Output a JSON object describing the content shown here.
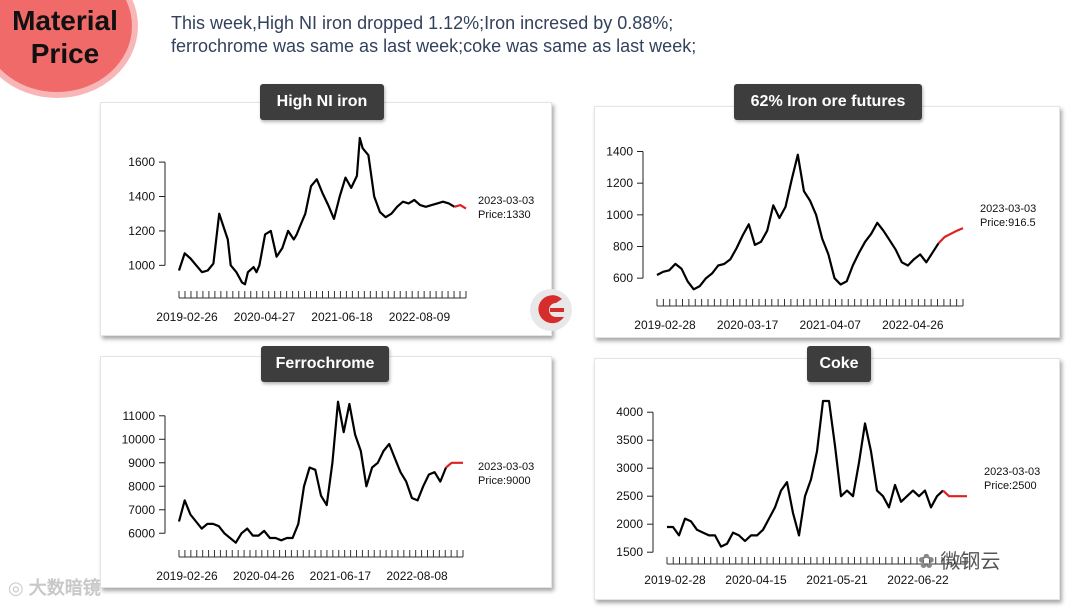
{
  "badge": {
    "line1": "Material",
    "line2": "Price"
  },
  "summary": {
    "line1": "This week,High NI iron  dropped  1.12%;Iron  incresed by 0.88%;",
    "line2": "ferrochrome  was same as last week;coke was same as last week;"
  },
  "watermarks": {
    "left": "大数暗镜",
    "right": "微钢云"
  },
  "colors": {
    "line": "#000000",
    "recent": "#e02020",
    "title_bg": "#3d3d3d"
  },
  "chart_data": [
    {
      "type": "line",
      "title": "High NI iron",
      "annotation": {
        "date": "2023-03-03",
        "price": "Price:1330"
      },
      "x_tick_labels": [
        "2019-02-26",
        "2020-04-27",
        "2021-06-18",
        "2022-08-09"
      ],
      "y_ticks": [
        1000,
        1200,
        1400,
        1600
      ],
      "ylim": [
        880,
        1740
      ],
      "x": [
        0,
        2,
        4,
        6,
        8,
        10,
        12,
        14,
        16,
        17,
        18,
        20,
        22,
        23,
        24,
        26,
        27,
        28,
        30,
        32,
        34,
        36,
        38,
        40,
        41,
        42,
        44,
        46,
        48,
        50,
        52,
        54,
        56,
        58,
        60,
        62,
        63,
        64,
        66,
        68,
        70,
        72,
        74,
        76,
        78,
        80,
        82,
        84,
        86,
        88,
        90,
        92,
        94,
        96,
        98,
        100
      ],
      "values": [
        970,
        1070,
        1040,
        1000,
        960,
        970,
        1010,
        1300,
        1200,
        1150,
        1000,
        960,
        900,
        890,
        960,
        990,
        960,
        1000,
        1180,
        1200,
        1050,
        1100,
        1200,
        1150,
        1180,
        1220,
        1300,
        1460,
        1500,
        1420,
        1350,
        1270,
        1400,
        1510,
        1450,
        1520,
        1740,
        1680,
        1640,
        1400,
        1310,
        1280,
        1300,
        1340,
        1370,
        1360,
        1380,
        1350,
        1340,
        1350,
        1360,
        1370,
        1360,
        1340,
        1350,
        1330
      ],
      "recent_from_index": 53
    },
    {
      "type": "line",
      "title": "62% Iron ore futures",
      "annotation": {
        "date": "2023-03-03",
        "price": "Price:916.5"
      },
      "x_tick_labels": [
        "2019-02-28",
        "2020-03-17",
        "2021-04-07",
        "2022-04-26"
      ],
      "y_ticks": [
        600,
        800,
        1000,
        1200,
        1400
      ],
      "ylim": [
        500,
        1460
      ],
      "x": [
        0,
        2,
        4,
        6,
        8,
        10,
        12,
        14,
        16,
        18,
        20,
        22,
        24,
        26,
        28,
        30,
        32,
        34,
        36,
        38,
        40,
        42,
        44,
        46,
        48,
        50,
        52,
        54,
        56,
        58,
        60,
        62,
        64,
        66,
        68,
        70,
        72,
        74,
        76,
        78,
        80,
        82,
        84,
        86,
        88,
        90,
        92,
        94,
        96,
        98,
        100
      ],
      "values": [
        620,
        640,
        650,
        690,
        660,
        580,
        530,
        550,
        600,
        630,
        680,
        690,
        720,
        790,
        870,
        940,
        810,
        830,
        900,
        1060,
        980,
        1050,
        1220,
        1380,
        1150,
        1090,
        1000,
        850,
        750,
        600,
        560,
        580,
        680,
        760,
        830,
        880,
        950,
        900,
        840,
        780,
        700,
        680,
        720,
        750,
        700,
        760,
        820,
        860,
        880,
        900,
        916
      ],
      "recent_from_index": 46
    },
    {
      "type": "line",
      "title": "Ferrochrome",
      "annotation": {
        "date": "2023-03-03",
        "price": "Price:9000"
      },
      "x_tick_labels": [
        "2019-02-26",
        "2020-04-26",
        "2021-06-17",
        "2022-08-08"
      ],
      "y_ticks": [
        6000,
        7000,
        8000,
        9000,
        10000,
        11000
      ],
      "ylim": [
        5500,
        11800
      ],
      "x": [
        0,
        2,
        4,
        6,
        8,
        10,
        12,
        14,
        16,
        18,
        20,
        22,
        24,
        26,
        28,
        30,
        32,
        34,
        36,
        38,
        40,
        42,
        44,
        46,
        48,
        50,
        52,
        54,
        56,
        58,
        60,
        62,
        64,
        66,
        68,
        70,
        72,
        74,
        76,
        78,
        80,
        82,
        84,
        86,
        88,
        90,
        92,
        94,
        96,
        98,
        100
      ],
      "values": [
        6500,
        7400,
        6800,
        6500,
        6200,
        6400,
        6400,
        6300,
        6000,
        5800,
        5600,
        6000,
        6200,
        5900,
        5900,
        6100,
        5800,
        5800,
        5700,
        5800,
        5800,
        6400,
        8000,
        8800,
        8700,
        7600,
        7200,
        9000,
        11600,
        10300,
        11500,
        10200,
        9500,
        8000,
        8800,
        9000,
        9500,
        9800,
        9200,
        8600,
        8200,
        7500,
        7400,
        8000,
        8500,
        8600,
        8200,
        8800,
        9000,
        9000,
        9000
      ],
      "recent_from_index": 47
    },
    {
      "type": "line",
      "title": "Coke",
      "annotation": {
        "date": "2023-03-03",
        "price": "Price:2500"
      },
      "x_tick_labels": [
        "2019-02-28",
        "2020-04-15",
        "2021-05-21",
        "2022-06-22"
      ],
      "y_ticks": [
        1500,
        2000,
        2500,
        3000,
        3500,
        4000
      ],
      "ylim": [
        1450,
        4200
      ],
      "x": [
        0,
        2,
        4,
        6,
        8,
        10,
        12,
        14,
        16,
        18,
        20,
        22,
        24,
        26,
        28,
        30,
        32,
        34,
        36,
        38,
        40,
        42,
        44,
        46,
        48,
        50,
        52,
        54,
        56,
        58,
        60,
        62,
        64,
        66,
        68,
        70,
        72,
        74,
        76,
        78,
        80,
        82,
        84,
        86,
        88,
        90,
        92,
        94,
        96,
        98,
        100
      ],
      "values": [
        1950,
        1950,
        1800,
        2100,
        2050,
        1900,
        1850,
        1800,
        1800,
        1600,
        1650,
        1850,
        1800,
        1700,
        1800,
        1800,
        1900,
        2100,
        2300,
        2600,
        2750,
        2200,
        1800,
        2500,
        2800,
        3300,
        4200,
        4200,
        3400,
        2500,
        2600,
        2500,
        3100,
        3800,
        3300,
        2600,
        2500,
        2300,
        2700,
        2400,
        2500,
        2600,
        2500,
        2600,
        2300,
        2500,
        2600,
        2500,
        2500,
        2500,
        2500
      ],
      "recent_from_index": 46
    }
  ]
}
